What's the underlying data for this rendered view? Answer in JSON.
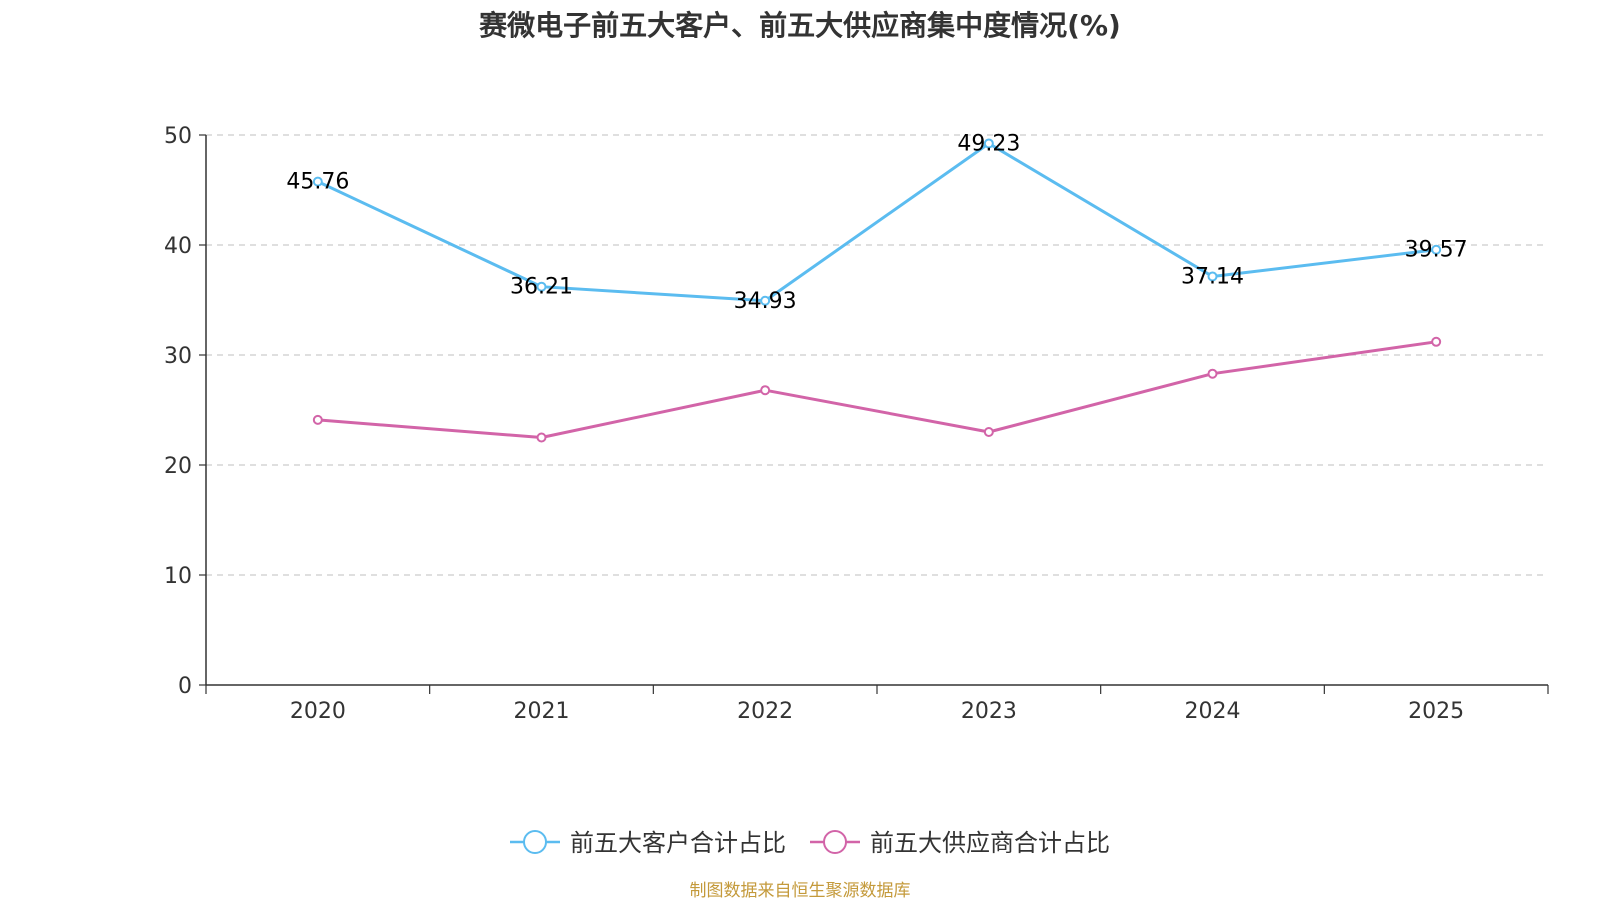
{
  "chart_data": {
    "type": "line",
    "title": "赛微电子前五大客户、前五大供应商集中度情况(%)",
    "categories": [
      "2020",
      "2021",
      "2022",
      "2023",
      "2024",
      "2025"
    ],
    "ylim": [
      0,
      50
    ],
    "yticks": [
      0,
      10,
      20,
      30,
      40,
      50
    ],
    "grid": true,
    "legend_position": "bottom",
    "series": [
      {
        "name": "前五大客户合计占比",
        "color": "#5bbcf0",
        "values": [
          45.76,
          36.21,
          34.93,
          49.23,
          37.14,
          39.57
        ],
        "labels": [
          "45.76",
          "36.21",
          "34.93",
          "49.23",
          "37.14",
          "39.57"
        ]
      },
      {
        "name": "前五大供应商合计占比",
        "color": "#d264a8",
        "values": [
          24.1,
          22.5,
          26.8,
          23.0,
          28.3,
          31.2
        ]
      }
    ]
  },
  "source_note": "制图数据来自恒生聚源数据库"
}
